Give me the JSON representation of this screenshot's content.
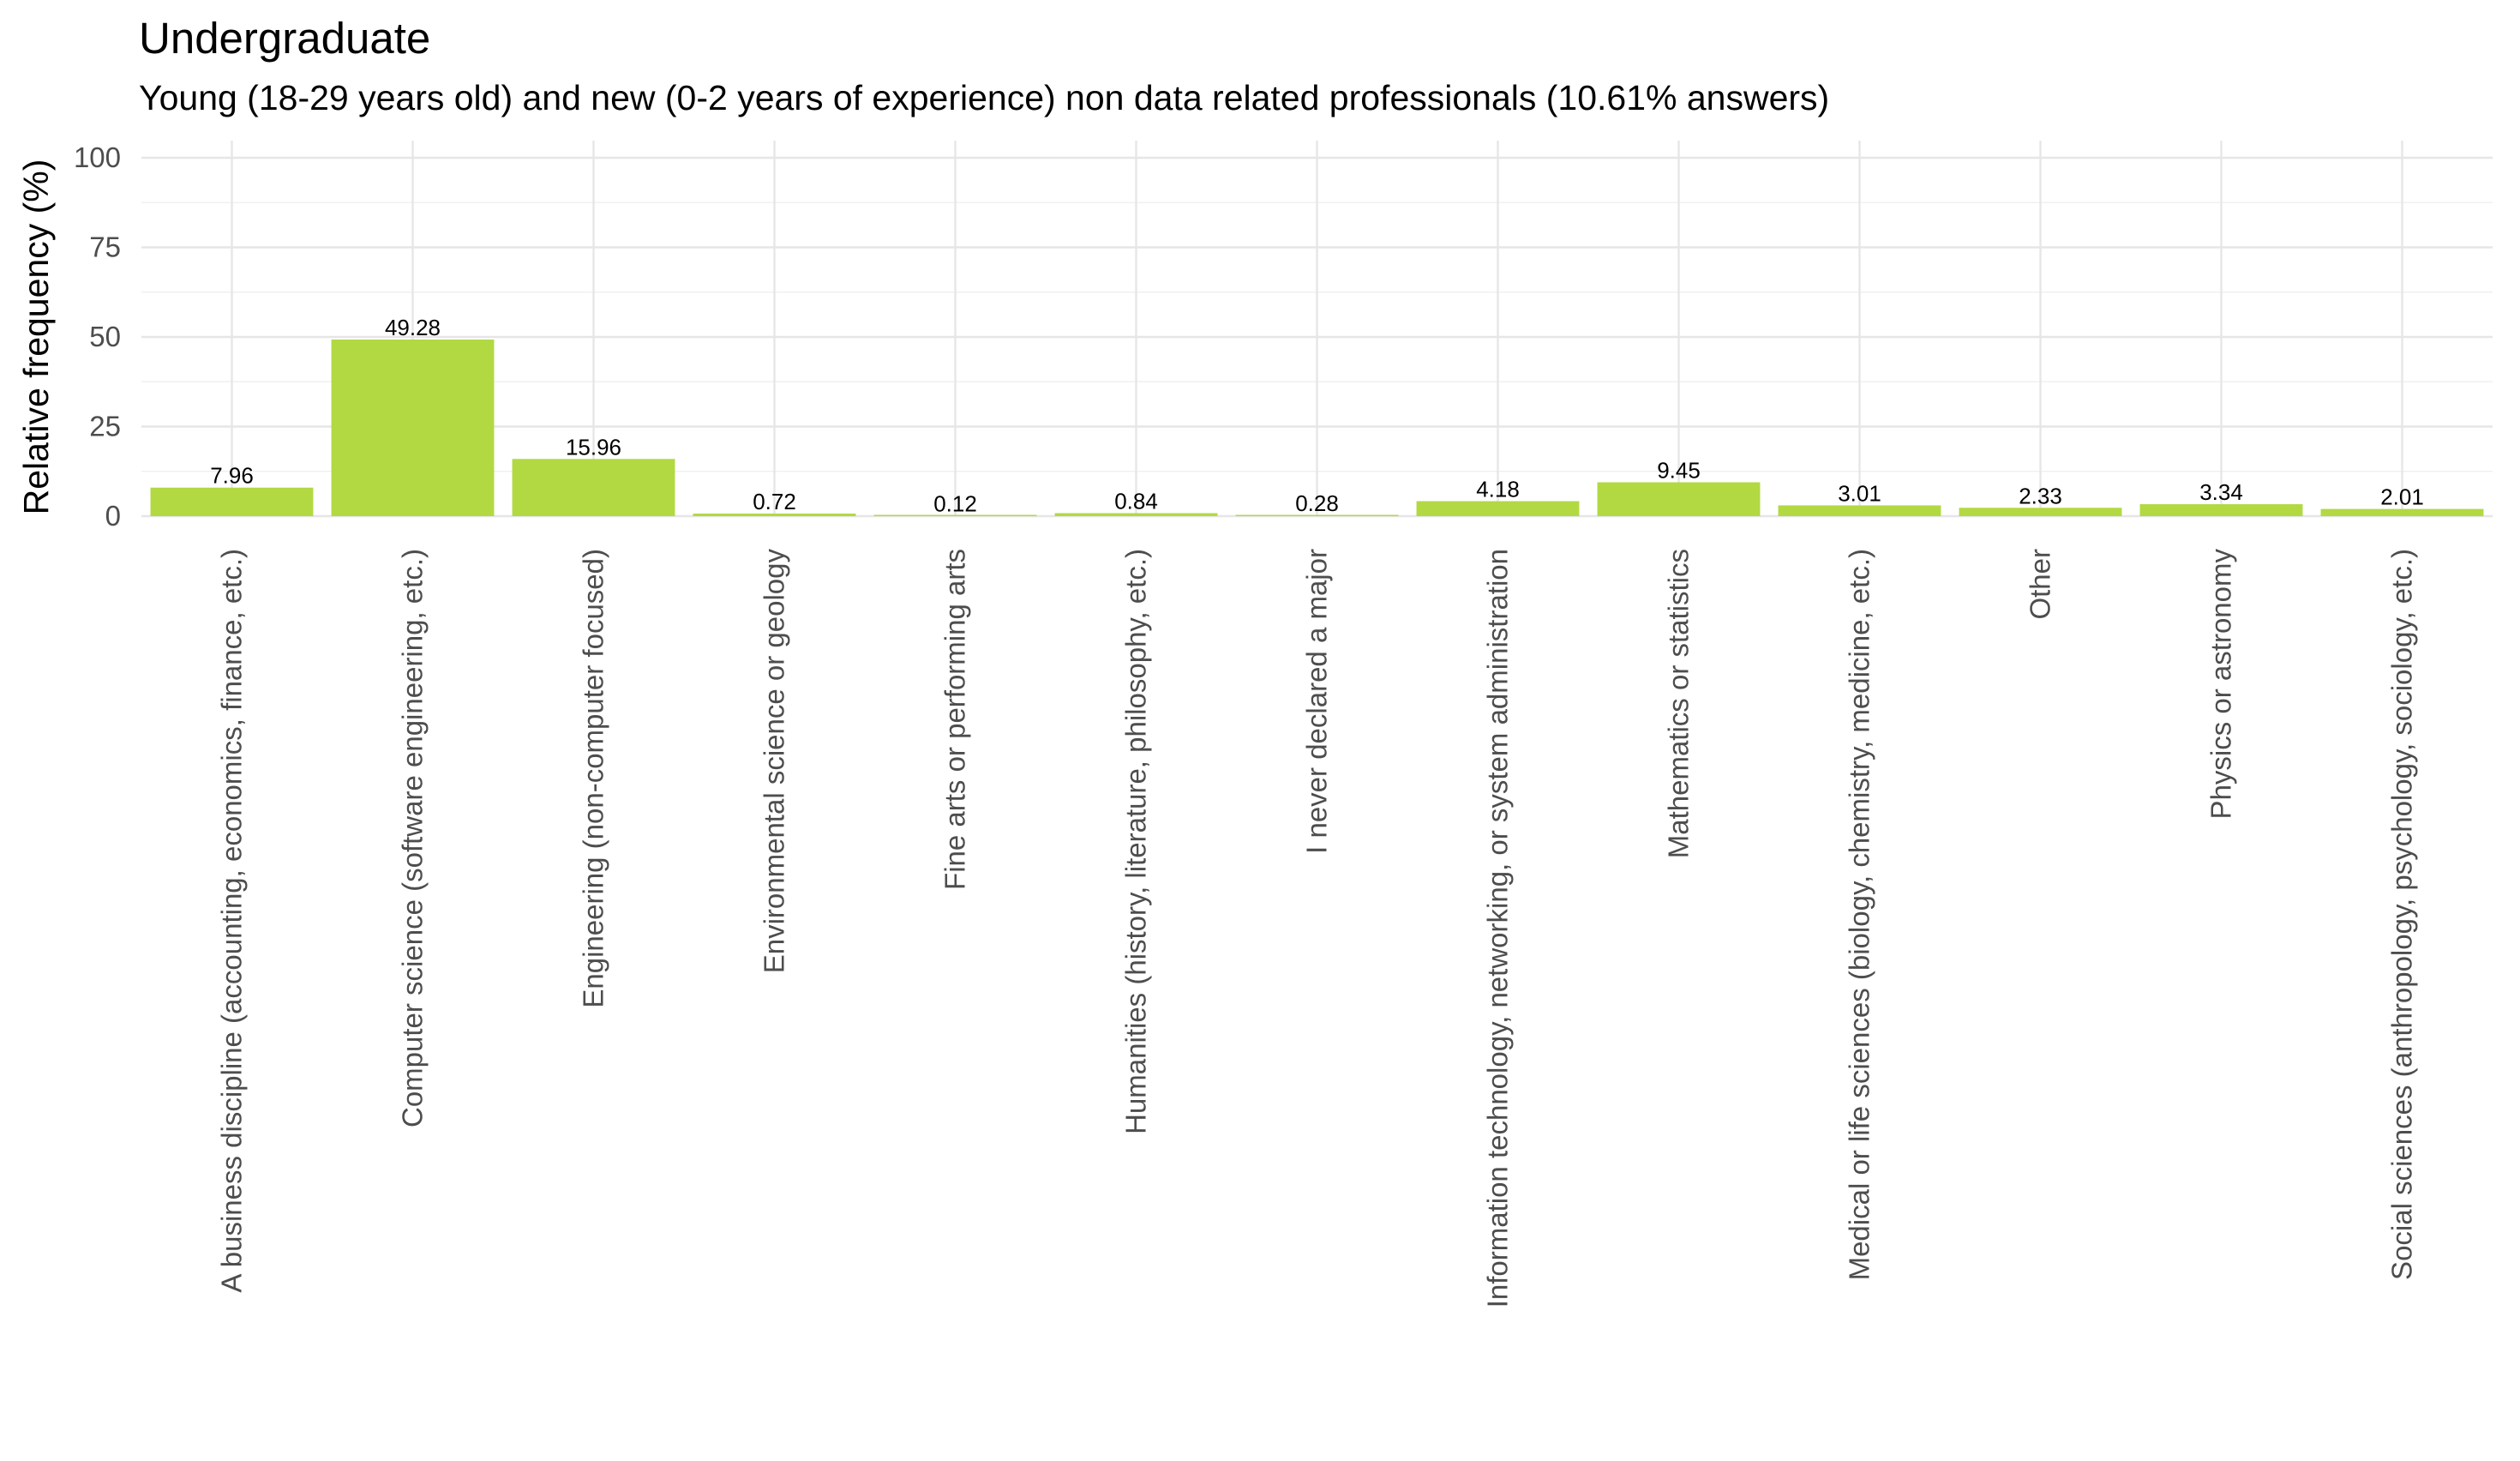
{
  "chart_data": {
    "type": "bar",
    "title": "Undergraduate",
    "subtitle": "Young (18-29 years old) and new (0-2 years of experience) non data related professionals (10.61% answers)",
    "xlabel": "",
    "ylabel": "Relative frequency (%)",
    "ylim": [
      0,
      100
    ],
    "yticks": [
      0,
      25,
      50,
      75,
      100
    ],
    "grid": true,
    "legend": "none",
    "bar_color": "#b2d942",
    "categories": [
      "A business discipline (accounting, economics, finance, etc.)",
      "Computer science (software engineering, etc.)",
      "Engineering (non-computer focused)",
      "Environmental science or geology",
      "Fine arts or performing arts",
      "Humanities (history, literature, philosophy, etc.)",
      "I never declared a major",
      "Information technology, networking, or system administration",
      "Mathematics or statistics",
      "Medical or life sciences (biology, chemistry, medicine, etc.)",
      "Other",
      "Physics or astronomy",
      "Social sciences (anthropology, psychology, sociology, etc.)"
    ],
    "values": [
      7.96,
      49.28,
      15.96,
      0.72,
      0.12,
      0.84,
      0.28,
      4.18,
      9.45,
      3.01,
      2.33,
      3.34,
      2.01
    ],
    "data_labels": [
      "7.96",
      "49.28",
      "15.96",
      "0.72",
      "0.12",
      "0.84",
      "0.28",
      "4.18",
      "9.45",
      "3.01",
      "2.33",
      "3.34",
      "2.01"
    ]
  }
}
